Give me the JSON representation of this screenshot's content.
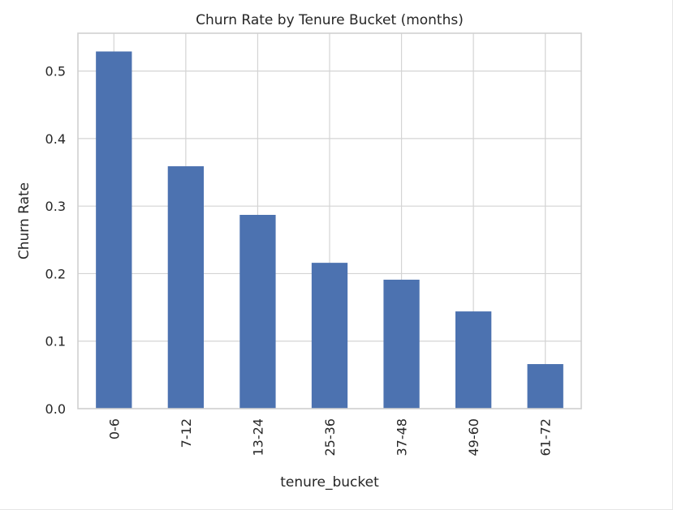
{
  "chart_data": {
    "type": "bar",
    "title": "Churn Rate by Tenure Bucket (months)",
    "xlabel": "tenure_bucket",
    "ylabel": "Churn Rate",
    "categories": [
      "0-6",
      "7-12",
      "13-24",
      "25-36",
      "37-48",
      "49-60",
      "61-72"
    ],
    "values": [
      0.529,
      0.359,
      0.287,
      0.216,
      0.191,
      0.144,
      0.066
    ],
    "ylim": [
      0,
      0.556
    ],
    "yticks": [
      "0.0",
      "0.1",
      "0.2",
      "0.3",
      "0.4",
      "0.5"
    ],
    "grid": true,
    "legend": "none",
    "bar_color": "#4c72b0",
    "grid_color": "#d4d4d4"
  }
}
